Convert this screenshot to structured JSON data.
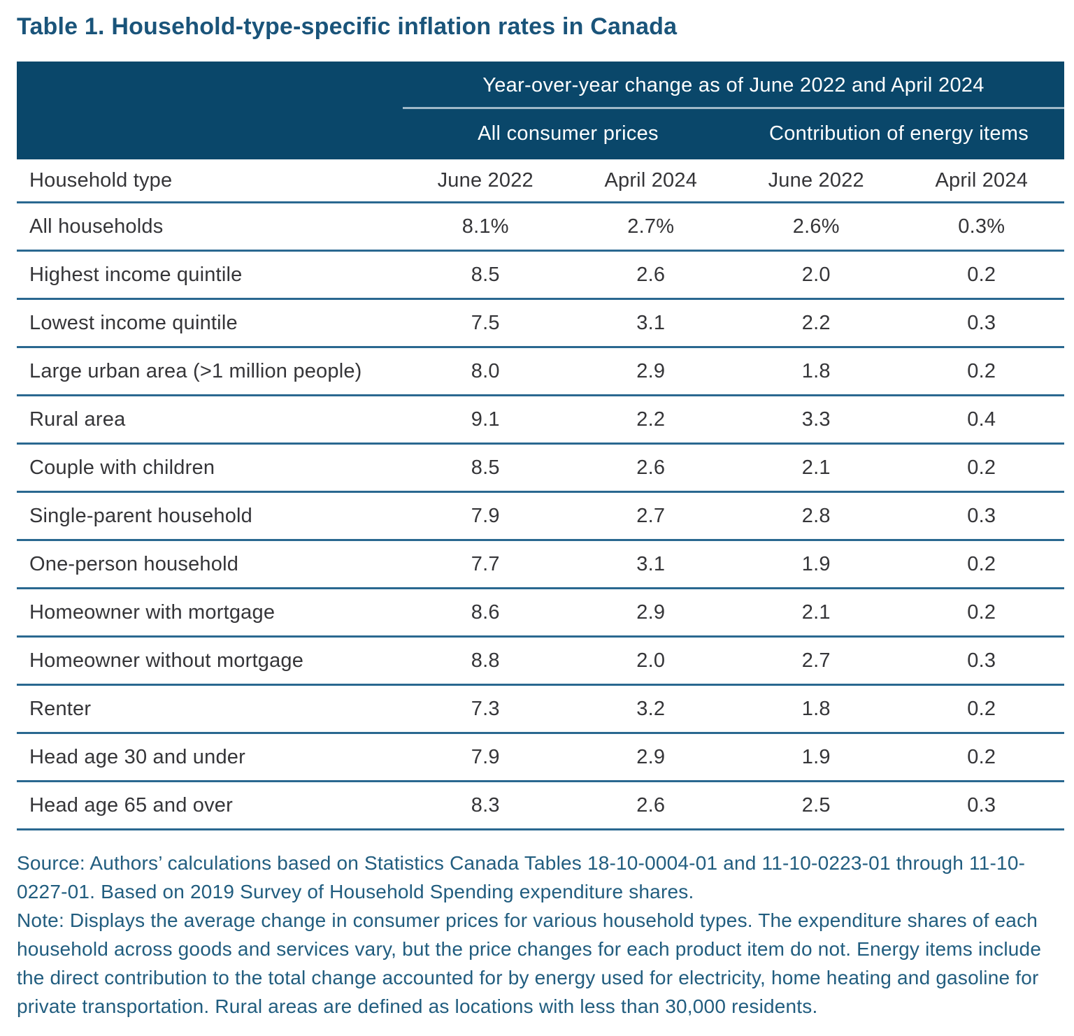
{
  "title": "Table 1. Household-type-specific inflation rates in Canada",
  "chart_data": {
    "type": "table",
    "span_header": "Year-over-year change as of June 2022 and April 2024",
    "group_headers": [
      "All consumer prices",
      "Contribution of energy items"
    ],
    "col_headers": [
      "Household type",
      "June 2022",
      "April 2024",
      "June 2022",
      "April 2024"
    ],
    "rows": [
      {
        "label": "All households",
        "values": [
          "8.1%",
          "2.7%",
          "2.6%",
          "0.3%"
        ]
      },
      {
        "label": "Highest income quintile",
        "values": [
          "8.5",
          "2.6",
          "2.0",
          "0.2"
        ]
      },
      {
        "label": "Lowest income quintile",
        "values": [
          "7.5",
          "3.1",
          "2.2",
          "0.3"
        ]
      },
      {
        "label": "Large urban area (>1 million people)",
        "values": [
          "8.0",
          "2.9",
          "1.8",
          "0.2"
        ]
      },
      {
        "label": "Rural area",
        "values": [
          "9.1",
          "2.2",
          "3.3",
          "0.4"
        ]
      },
      {
        "label": "Couple with children",
        "values": [
          "8.5",
          "2.6",
          "2.1",
          "0.2"
        ]
      },
      {
        "label": "Single-parent household",
        "values": [
          "7.9",
          "2.7",
          "2.8",
          "0.3"
        ]
      },
      {
        "label": "One-person household",
        "values": [
          "7.7",
          "3.1",
          "1.9",
          "0.2"
        ]
      },
      {
        "label": "Homeowner with mortgage",
        "values": [
          "8.6",
          "2.9",
          "2.1",
          "0.2"
        ]
      },
      {
        "label": "Homeowner without mortgage",
        "values": [
          "8.8",
          "2.0",
          "2.7",
          "0.3"
        ]
      },
      {
        "label": "Renter",
        "values": [
          "7.3",
          "3.2",
          "1.8",
          "0.2"
        ]
      },
      {
        "label": "Head age 30 and under",
        "values": [
          "7.9",
          "2.9",
          "1.9",
          "0.2"
        ]
      },
      {
        "label": "Head age 65 and over",
        "values": [
          "8.3",
          "2.6",
          "2.5",
          "0.3"
        ]
      }
    ]
  },
  "footnotes": {
    "source": "Source: Authors’ calculations based on Statistics Canada Tables 18-10-0004-01 and 11-10-0223-01 through 11-10-0227-01. Based on 2019 Survey of Household Spending expenditure shares.",
    "note": "Note: Displays the average change in consumer prices for various household types. The expenditure shares of each household across goods and services vary, but the price changes for each product item do not. Energy items include the direct contribution to the total change accounted for by energy used for electricity, home heating and gasoline for private transportation. Rural areas are defined as locations with less than 30,000 residents."
  },
  "colors": {
    "header_bg": "#0A476A",
    "header_rule": "#9FB9C8",
    "divider": "#2A6890",
    "title_text": "#1A547A",
    "note_text": "#215D7F",
    "body_text": "#353538"
  }
}
